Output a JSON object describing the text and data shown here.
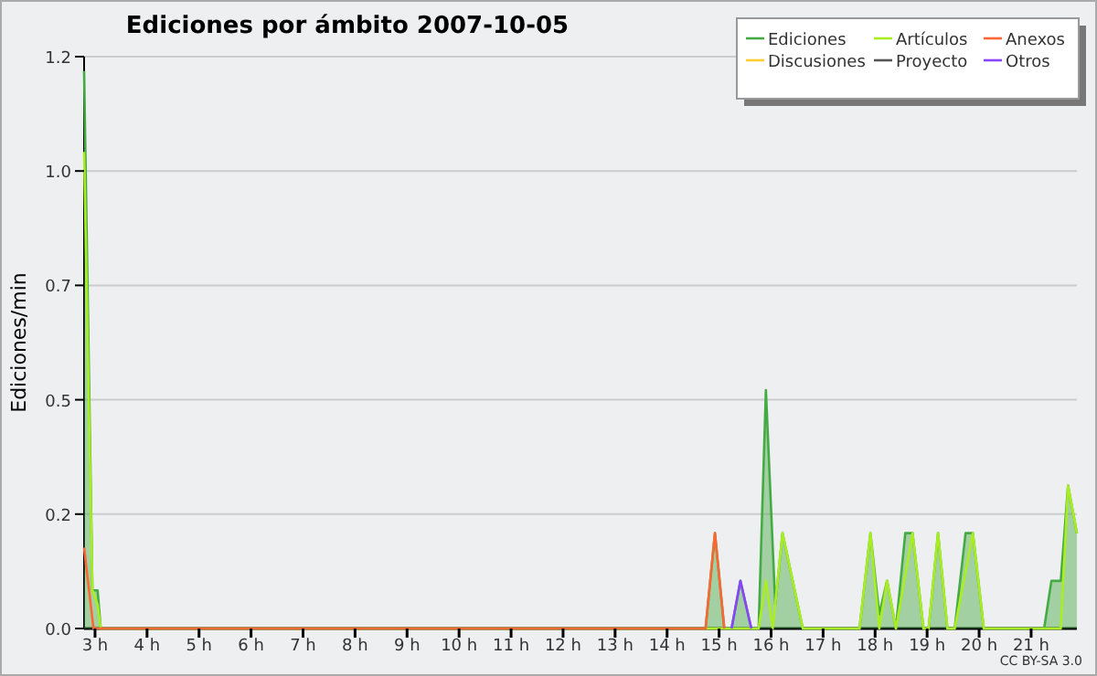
{
  "chart_data": {
    "type": "line",
    "title": "Ediciones por ámbito  2007-10-05",
    "ylabel": "Ediciones/min",
    "xlim": [
      2.79,
      21.88
    ],
    "xticks": [
      {
        "value": 3,
        "label": "3 h"
      },
      {
        "value": 4,
        "label": "4 h"
      },
      {
        "value": 5,
        "label": "5 h"
      },
      {
        "value": 6,
        "label": "6 h"
      },
      {
        "value": 7,
        "label": "7 h"
      },
      {
        "value": 8,
        "label": "8 h"
      },
      {
        "value": 9,
        "label": "9 h"
      },
      {
        "value": 10,
        "label": "10 h"
      },
      {
        "value": 11,
        "label": "11 h"
      },
      {
        "value": 12,
        "label": "12 h"
      },
      {
        "value": 13,
        "label": "13 h"
      },
      {
        "value": 14,
        "label": "14 h"
      },
      {
        "value": 15,
        "label": "15 h"
      },
      {
        "value": 16,
        "label": "16 h"
      },
      {
        "value": 17,
        "label": "17 h"
      },
      {
        "value": 18,
        "label": "18 h"
      },
      {
        "value": 19,
        "label": "19 h"
      },
      {
        "value": 20,
        "label": "20 h"
      },
      {
        "value": 21,
        "label": "21 h"
      }
    ],
    "ylim": [
      0,
      1.2
    ],
    "yticks": [
      {
        "value": 0,
        "label": "0.0"
      },
      {
        "value": 0.24,
        "label": "0.2"
      },
      {
        "value": 0.48,
        "label": "0.5"
      },
      {
        "value": 0.72,
        "label": "0.7"
      },
      {
        "value": 0.96,
        "label": "1.0"
      },
      1.2
    ],
    "grid": "y",
    "legend": "top right",
    "annotations": [
      "CC BY-SA 3.0"
    ],
    "series": [
      {
        "name": "Ediciones",
        "type": "area",
        "color": "#44aa44",
        "x": [
          2.79,
          2.95,
          3.05,
          3.11,
          14.74,
          14.92,
          15.1,
          15.24,
          15.41,
          15.62,
          15.76,
          15.9,
          16.08,
          16.22,
          16.61,
          17.7,
          17.91,
          18.08,
          18.23,
          18.4,
          18.58,
          18.72,
          18.93,
          19.03,
          19.21,
          19.39,
          19.53,
          19.74,
          19.88,
          20.09,
          21.25,
          21.39,
          21.57,
          21.71,
          21.88
        ],
        "values": [
          1.17,
          0.08,
          0.08,
          0,
          0,
          0.2,
          0,
          0,
          0.1,
          0,
          0,
          0.5,
          0.05,
          0.2,
          0,
          0,
          0.2,
          0.03,
          0.1,
          0,
          0.2,
          0.2,
          0,
          0,
          0.2,
          0,
          0,
          0.2,
          0.2,
          0,
          0,
          0.1,
          0.1,
          0.3,
          0.2
        ]
      },
      {
        "name": "Artículos",
        "color": "#aaee22",
        "x": [
          2.79,
          2.95,
          3.05,
          3.11,
          15.76,
          15.9,
          16.03,
          16.22,
          16.61,
          17.7,
          17.91,
          18.08,
          18.23,
          18.4,
          18.72,
          18.93,
          19.03,
          19.21,
          19.39,
          19.53,
          19.88,
          20.09,
          21.57,
          21.71,
          21.88
        ],
        "values": [
          1.0,
          0.08,
          0.05,
          0,
          0,
          0.1,
          0,
          0.2,
          0,
          0,
          0.2,
          0,
          0.1,
          0,
          0.2,
          0,
          0,
          0.2,
          0,
          0,
          0.2,
          0,
          0,
          0.3,
          0.2
        ]
      },
      {
        "name": "Anexos",
        "color": "#ff6633",
        "x": [
          2.79,
          2.97,
          14.74,
          14.92,
          15.1
        ],
        "values": [
          0.17,
          0,
          0,
          0.2,
          0
        ]
      },
      {
        "name": "Discusiones",
        "color": "#ffcc33"
      },
      {
        "name": "Proyecto",
        "color": "#555555"
      },
      {
        "name": "Otros",
        "color": "#8844ff",
        "x": [
          15.24,
          15.41,
          15.62
        ],
        "values": [
          0,
          0.1,
          0
        ]
      }
    ]
  }
}
